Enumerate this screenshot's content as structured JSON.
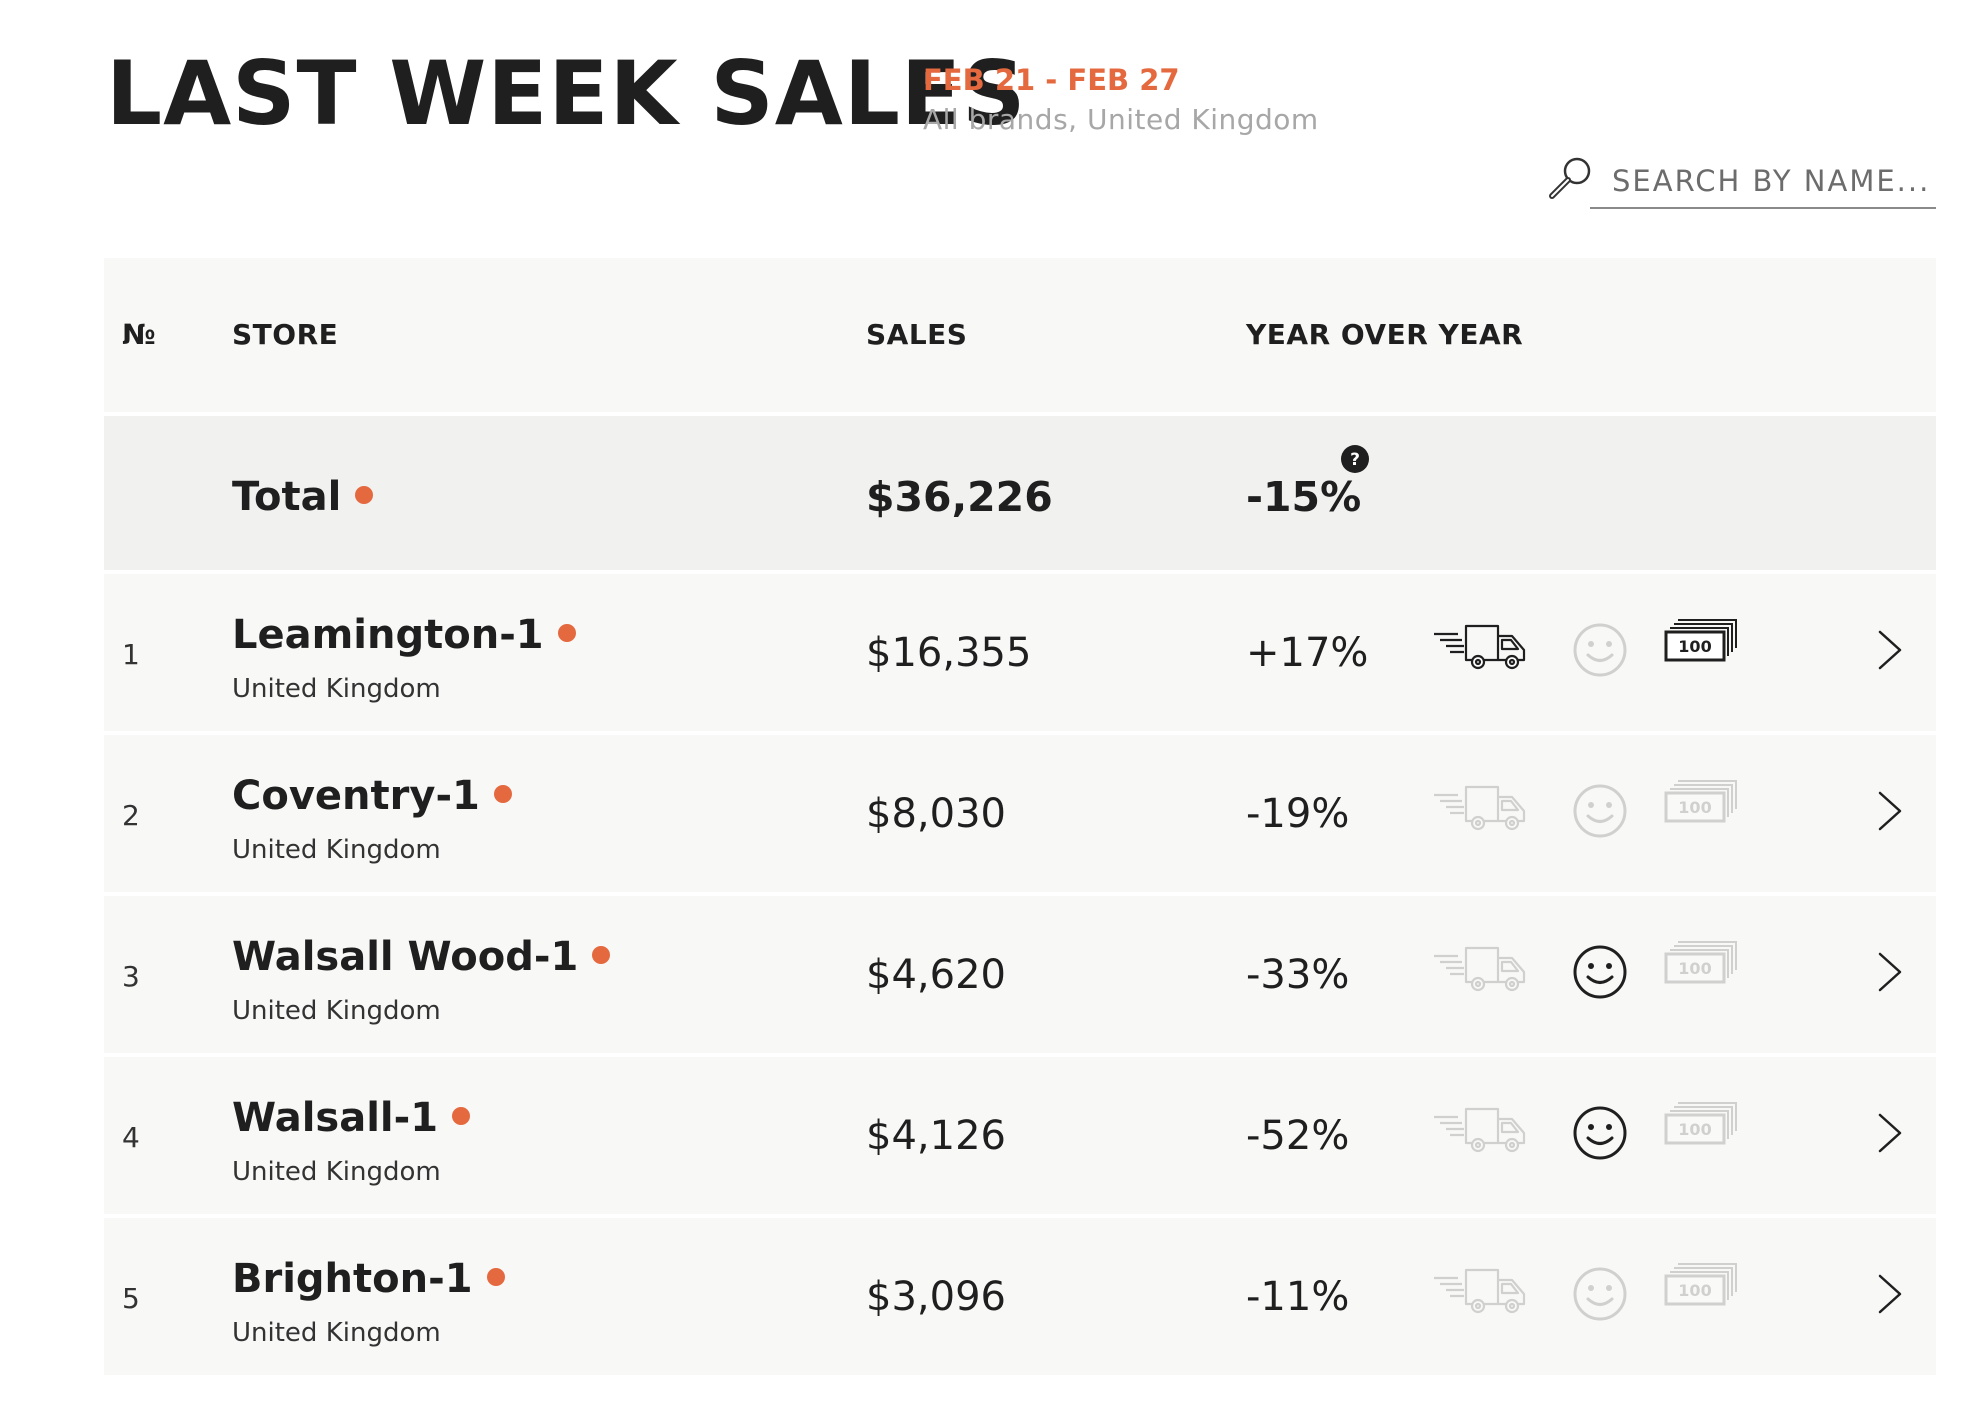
{
  "header": {
    "title": "LAST WEEK SALES",
    "date_range": "FEB 21 - FEB 27",
    "subtitle": "All brands, United Kingdom"
  },
  "search": {
    "placeholder": "SEARCH BY NAME..."
  },
  "table": {
    "columns": {
      "num": "№",
      "store": "STORE",
      "sales": "SALES",
      "yoy": "YEAR OVER YEAR"
    },
    "total": {
      "label": "Total",
      "sales": "$36,226",
      "yoy": "-15%"
    },
    "rows": [
      {
        "num": "1",
        "name": "Leamington-1",
        "country": "United Kingdom",
        "sales": "$16,355",
        "yoy": "+17%",
        "delivery_active": true,
        "satisfaction_active": false,
        "cash_active": true
      },
      {
        "num": "2",
        "name": "Coventry-1",
        "country": "United Kingdom",
        "sales": "$8,030",
        "yoy": "-19%",
        "delivery_active": false,
        "satisfaction_active": false,
        "cash_active": false
      },
      {
        "num": "3",
        "name": "Walsall Wood-1",
        "country": "United Kingdom",
        "sales": "$4,620",
        "yoy": "-33%",
        "delivery_active": false,
        "satisfaction_active": true,
        "cash_active": false
      },
      {
        "num": "4",
        "name": "Walsall-1",
        "country": "United Kingdom",
        "sales": "$4,126",
        "yoy": "-52%",
        "delivery_active": false,
        "satisfaction_active": true,
        "cash_active": false
      },
      {
        "num": "5",
        "name": "Brighton-1",
        "country": "United Kingdom",
        "sales": "$3,096",
        "yoy": "-11%",
        "delivery_active": false,
        "satisfaction_active": false,
        "cash_active": false
      }
    ]
  },
  "icons": {
    "search": "magnifier-icon",
    "help": "question-circle-icon",
    "delivery": "delivery-truck-icon",
    "satisfaction": "smiley-face-icon",
    "cash": "banknote-stack-icon",
    "cash_label": "100",
    "chevron": "chevron-right-icon"
  },
  "colors": {
    "accent": "#e5693f",
    "text": "#1f1f1f",
    "muted": "#a7a7a7",
    "row_bg": "#f8f8f7",
    "total_bg": "#f1f1f0"
  }
}
